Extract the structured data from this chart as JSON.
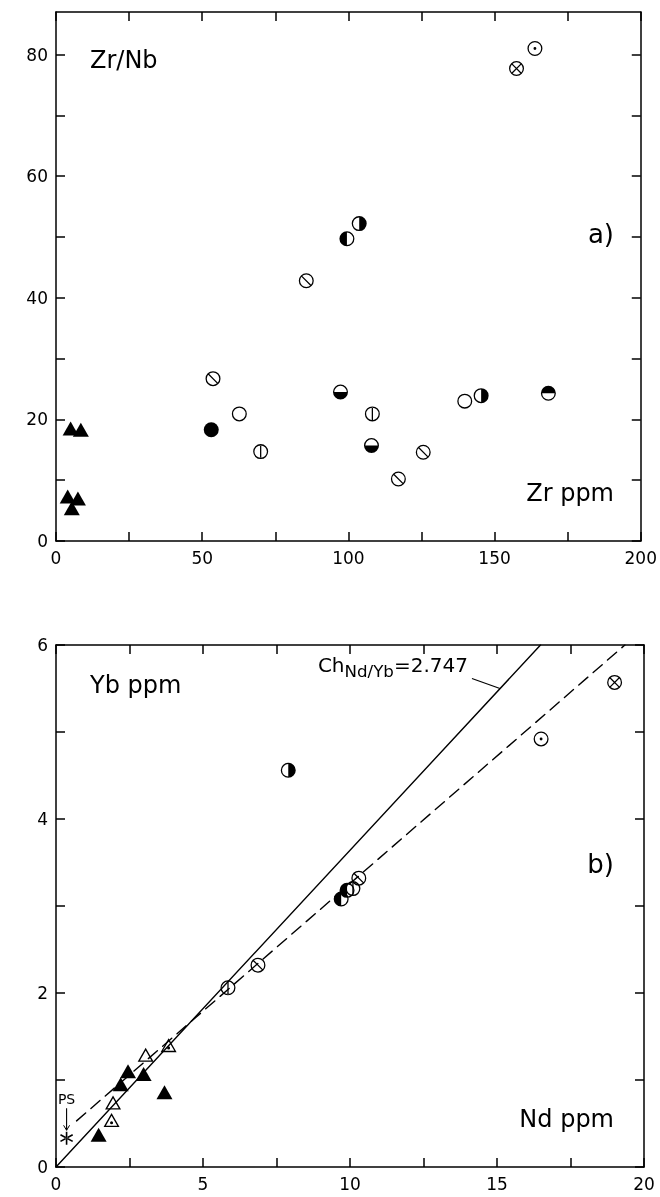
{
  "chart_data": [
    {
      "type": "scatter",
      "xlabel": "Zr ppm",
      "ylabel": "Zr/Nb",
      "annotations": [
        "a)"
      ],
      "xlim": [
        0,
        200
      ],
      "xticks": [
        0,
        {
          "value": 25,
          "label": null
        },
        50,
        {
          "value": 75,
          "label": null
        },
        100,
        {
          "value": 125,
          "label": null
        },
        150,
        {
          "value": 175,
          "label": null
        },
        200
      ],
      "ylim": [
        0,
        87
      ],
      "yticks": [
        0,
        {
          "value": 10,
          "label": null
        },
        20,
        {
          "value": 30,
          "label": null
        },
        40,
        {
          "value": 50,
          "label": null
        },
        60,
        {
          "value": 70,
          "label": null
        },
        80
      ],
      "grid": false,
      "series": [
        {
          "marker": "circle",
          "color": "#000000",
          "x": [
            157.5
          ],
          "values": [
            77.7
          ]
        },
        {
          "marker": "circle",
          "color": "#000000",
          "x": [
            163.8
          ],
          "values": [
            81
          ]
        },
        {
          "marker": "circle",
          "color": "#000000",
          "x": [
            99.5
          ],
          "values": [
            49.7
          ]
        },
        {
          "marker": "circle",
          "color": "#000000",
          "x": [
            103.7,
            145.4
          ],
          "values": [
            52.2,
            23.9
          ]
        },
        {
          "marker": "circle",
          "color": "#000000",
          "x": [
            85.6,
            53.7,
            117.1,
            125.6
          ],
          "values": [
            42.8,
            26.7,
            10.2,
            14.6
          ]
        },
        {
          "marker": "circle",
          "color": "#000000",
          "x": [
            62.7,
            139.8
          ],
          "values": [
            20.9,
            23.0
          ]
        },
        {
          "marker": "circle",
          "color": "#000000",
          "x": [
            53.1
          ],
          "values": [
            18.3
          ]
        },
        {
          "marker": "circle",
          "color": "#000000",
          "x": [
            70.0,
            108.2
          ],
          "values": [
            14.7,
            20.9
          ]
        },
        {
          "marker": "circle",
          "color": "#000000",
          "x": [
            97.3,
            107.9
          ],
          "values": [
            24.5,
            15.7
          ]
        },
        {
          "marker": "circle",
          "color": "#000000",
          "x": [
            168.4
          ],
          "values": [
            24.3
          ]
        },
        {
          "marker": "triangle",
          "color": "#000000",
          "x": [
            5,
            8.5,
            4,
            7.5,
            5.4
          ],
          "values": [
            18.5,
            18.3,
            7.3,
            7.0,
            5.4
          ]
        }
      ]
    },
    {
      "type": "scatter",
      "xlabel": "Nd ppm",
      "ylabel": "Yb ppm",
      "annotations": [
        "b)",
        {
          "text": "Ch$_{Nd/Yb}$=2.747",
          "x": 15.1,
          "y": 5.5
        },
        {
          "text": "PS",
          "x": 0.36,
          "y": 0.33
        }
      ],
      "xlim": [
        0,
        20
      ],
      "xticks": [
        0,
        {
          "value": 2.5,
          "label": null
        },
        5,
        {
          "value": 7.5,
          "label": null
        },
        10,
        {
          "value": 12.5,
          "label": null
        },
        15,
        {
          "value": 17.5,
          "label": null
        },
        20
      ],
      "ylim": [
        0,
        6
      ],
      "yticks": [
        0,
        {
          "value": 1,
          "label": null
        },
        2,
        {
          "value": 3,
          "label": null
        },
        4,
        {
          "value": 5,
          "label": null
        },
        6
      ],
      "grid": false,
      "series": [
        {
          "type": "line",
          "line_style": "solid",
          "color": "#000000",
          "x": [
            0,
            16.48
          ],
          "values": [
            0,
            6
          ]
        },
        {
          "type": "line",
          "line_style": "dashed",
          "color": "#000000",
          "x": [
            0.7,
            19.35
          ],
          "values": [
            0.53,
            6
          ]
        },
        {
          "marker": "circle",
          "color": "#000000",
          "x": [
            19.0
          ],
          "values": [
            5.57
          ]
        },
        {
          "marker": "circle",
          "color": "#000000",
          "x": [
            16.5
          ],
          "values": [
            4.92
          ]
        },
        {
          "marker": "circle",
          "color": "#000000",
          "x": [
            7.9
          ],
          "values": [
            4.56
          ]
        },
        {
          "marker": "circle",
          "color": "#000000",
          "x": [
            9.7,
            9.9
          ],
          "values": [
            3.08,
            3.18
          ]
        },
        {
          "marker": "circle",
          "color": "#000000",
          "x": [
            10.1,
            5.85
          ],
          "values": [
            3.2,
            2.06
          ]
        },
        {
          "marker": "circle",
          "color": "#000000",
          "x": [
            10.3,
            6.87
          ],
          "values": [
            3.32,
            2.32
          ]
        },
        {
          "marker": "triangle",
          "color": "#000000",
          "x": [
            3.05,
            1.94
          ],
          "values": [
            1.29,
            0.74
          ]
        },
        {
          "marker": "triangle",
          "color": "#000000",
          "x": [
            3.83,
            1.89
          ],
          "values": [
            1.4,
            0.54
          ]
        },
        {
          "marker": "triangle",
          "color": "#000000",
          "x": [
            2.45,
            2.2,
            2.98,
            3.69,
            1.45
          ],
          "values": [
            1.1,
            0.95,
            1.07,
            0.86,
            0.37
          ]
        },
        {
          "marker": "cross",
          "color": "#000000",
          "x": [
            0.36
          ],
          "values": [
            0.33
          ]
        }
      ]
    }
  ]
}
